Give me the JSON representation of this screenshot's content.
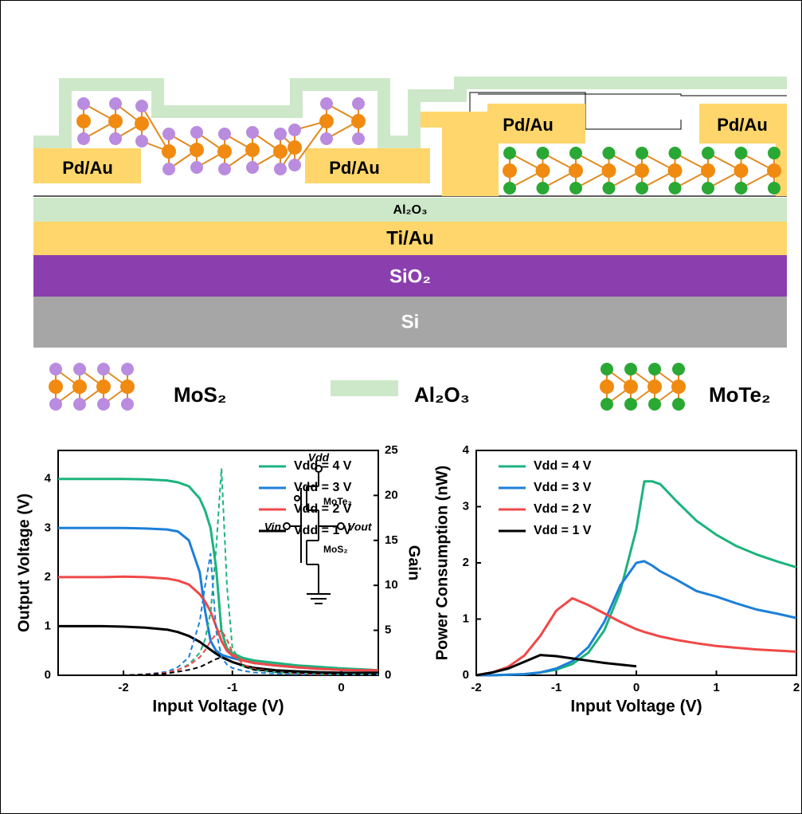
{
  "diagram": {
    "contacts": [
      "Pd/Au",
      "Pd/Au",
      "Pd/Au",
      "Pd/Au"
    ],
    "layers": [
      "Al₂O₃",
      "Ti/Au",
      "SiO₂",
      "Si"
    ],
    "legend": [
      "MoS₂",
      "Al₂O₃",
      "MoTe₂"
    ]
  },
  "chart_data": [
    {
      "type": "line",
      "x_label": "Input Voltage (V)",
      "y_label": "Output Voltage (V)",
      "y2_label": "Gain",
      "xlim": [
        -2.6,
        0.34
      ],
      "xticks": [
        -2,
        -1,
        0
      ],
      "ylim": [
        0,
        4.58
      ],
      "yticks": [
        0,
        1,
        2,
        3,
        4
      ],
      "y2lim": [
        0,
        25
      ],
      "y2ticks": [
        0,
        5,
        10,
        15,
        20,
        25
      ],
      "legend": "upper right",
      "inset": {
        "labels": [
          "Vdd",
          "Vin",
          "Vout",
          "MoTe₂",
          "MoS₂"
        ]
      },
      "x": [
        -2.6,
        -2.4,
        -2.2,
        -2.0,
        -1.8,
        -1.6,
        -1.5,
        -1.4,
        -1.3,
        -1.25,
        -1.2,
        -1.15,
        -1.1,
        -1.05,
        -1.0,
        -0.9,
        -0.8,
        -0.6,
        -0.4,
        -0.2,
        0,
        0.2,
        0.34
      ],
      "series": [
        {
          "name": "Vdd = 4 V",
          "color": "#1cb37c",
          "values": [
            4.0,
            4.0,
            4.0,
            4.0,
            3.99,
            3.97,
            3.93,
            3.85,
            3.6,
            3.35,
            3.0,
            2.2,
            0.9,
            0.55,
            0.45,
            0.35,
            0.3,
            0.25,
            0.2,
            0.17,
            0.14,
            0.12,
            0.1
          ]
        },
        {
          "name": "Vdd = 3 V",
          "color": "#1c7fd8",
          "values": [
            3.0,
            3.0,
            3.0,
            3.0,
            2.99,
            2.97,
            2.93,
            2.75,
            2.1,
            1.3,
            0.7,
            0.5,
            0.42,
            0.38,
            0.35,
            0.3,
            0.25,
            0.2,
            0.16,
            0.13,
            0.11,
            0.1,
            0.1
          ]
        },
        {
          "name": "Vdd = 2 V",
          "color": "#f04848",
          "values": [
            2.0,
            2.0,
            2.0,
            2.01,
            2.0,
            1.97,
            1.93,
            1.85,
            1.65,
            1.5,
            1.3,
            1.0,
            0.7,
            0.5,
            0.4,
            0.3,
            0.25,
            0.2,
            0.16,
            0.13,
            0.11,
            0.1,
            0.1
          ]
        },
        {
          "name": "Vdd = 1 V",
          "color": "#000000",
          "values": [
            1.0,
            1.0,
            1.0,
            0.99,
            0.97,
            0.93,
            0.88,
            0.8,
            0.68,
            0.6,
            0.52,
            0.44,
            0.37,
            0.32,
            0.27,
            0.2,
            0.15,
            0.1,
            0.08,
            0.06,
            0.05,
            0.05,
            0.05
          ]
        },
        {
          "color": "#1cb37c",
          "axis": "y2",
          "style": "dashed",
          "values": [
            0,
            0,
            0,
            0,
            0.1,
            0.3,
            0.6,
            1.2,
            2.5,
            4,
            7,
            14,
            23,
            10,
            3,
            1,
            0.6,
            0.3,
            0.2,
            0.1,
            0.1,
            0.1,
            0.1
          ]
        },
        {
          "color": "#1c7fd8",
          "axis": "y2",
          "style": "dashed",
          "values": [
            0,
            0,
            0,
            0,
            0.1,
            0.4,
            0.9,
            2,
            6,
            10,
            13.5,
            5,
            2,
            1.2,
            0.8,
            0.5,
            0.3,
            0.2,
            0.1,
            0.1,
            0.1,
            0.1,
            0.1
          ]
        },
        {
          "color": "#f04848",
          "axis": "y2",
          "style": "dashed",
          "values": [
            0,
            0,
            0,
            0,
            0.1,
            0.3,
            0.6,
            1.1,
            2,
            2.8,
            3.8,
            4.6,
            5,
            4,
            2.5,
            1.2,
            0.7,
            0.4,
            0.2,
            0.1,
            0.1,
            0.1,
            0.1
          ]
        },
        {
          "color": "#000000",
          "axis": "y2",
          "style": "dashed",
          "values": [
            0,
            0,
            0,
            0,
            0.1,
            0.2,
            0.4,
            0.6,
            0.9,
            1.2,
            1.5,
            1.8,
            2,
            1.8,
            1.5,
            1.0,
            0.6,
            0.4,
            0.3,
            0.2,
            0.1,
            0.1,
            0.1
          ]
        }
      ]
    },
    {
      "type": "line",
      "x_label": "Input Voltage (V)",
      "y_label": "Power Consumption (nW)",
      "xlim": [
        -2,
        2
      ],
      "xticks": [
        -2,
        -1,
        0,
        1,
        2
      ],
      "ylim": [
        0,
        4
      ],
      "yticks": [
        0,
        1,
        2,
        3,
        4
      ],
      "legend": "upper left",
      "x": [
        -2,
        -1.8,
        -1.6,
        -1.4,
        -1.2,
        -1,
        -0.8,
        -0.6,
        -0.4,
        -0.2,
        0,
        0.1,
        0.2,
        0.3,
        0.5,
        0.75,
        1,
        1.25,
        1.5,
        1.75,
        2
      ],
      "series": [
        {
          "name": "Vdd = 4 V",
          "color": "#1cb37c",
          "values": [
            0,
            0,
            0.01,
            0.02,
            0.05,
            0.1,
            0.2,
            0.4,
            0.8,
            1.5,
            2.6,
            3.45,
            3.45,
            3.4,
            3.1,
            2.75,
            2.5,
            2.3,
            2.15,
            2.03,
            1.92
          ]
        },
        {
          "name": "Vdd = 3 V",
          "color": "#1c7fd8",
          "values": [
            0,
            0,
            0.01,
            0.02,
            0.05,
            0.12,
            0.25,
            0.5,
            0.95,
            1.6,
            2.0,
            2.03,
            1.95,
            1.85,
            1.7,
            1.5,
            1.4,
            1.28,
            1.17,
            1.1,
            1.02
          ]
        },
        {
          "name": "Vdd = 2 V",
          "color": "#f04848",
          "values": [
            0,
            0.05,
            0.15,
            0.35,
            0.7,
            1.15,
            1.37,
            1.25,
            1.1,
            0.95,
            0.82,
            0.77,
            0.73,
            0.69,
            0.63,
            0.57,
            0.52,
            0.49,
            0.46,
            0.44,
            0.42
          ]
        },
        {
          "name": "Vdd = 1 V",
          "color": "#000000",
          "values": [
            0,
            0.05,
            0.12,
            0.24,
            0.36,
            0.34,
            0.3,
            0.26,
            0.22,
            0.19,
            0.16,
            null,
            null,
            null,
            null,
            null,
            null,
            null,
            null,
            null,
            null
          ]
        }
      ]
    }
  ]
}
